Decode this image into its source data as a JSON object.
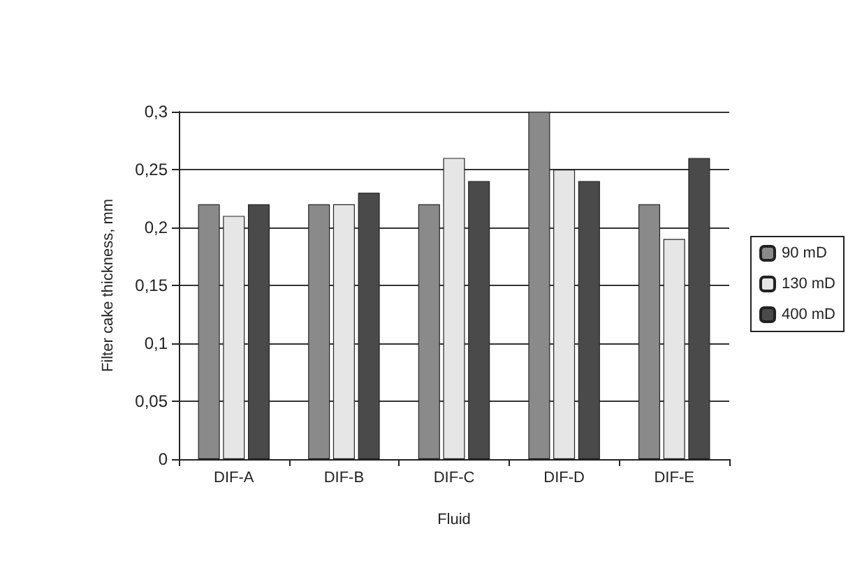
{
  "chart_data": {
    "type": "bar",
    "xlabel": "Fluid",
    "ylabel": "Filter cake thickness, mm",
    "categories": [
      "DIF-A",
      "DIF-B",
      "DIF-C",
      "DIF-D",
      "DIF-E"
    ],
    "series": [
      {
        "name": "90 mD",
        "color": "#8a8a8a",
        "values": [
          0.22,
          0.22,
          0.22,
          0.3,
          0.22
        ]
      },
      {
        "name": "130 mD",
        "color": "#e6e6e6",
        "values": [
          0.21,
          0.22,
          0.26,
          0.25,
          0.19
        ]
      },
      {
        "name": "400 mD",
        "color": "#4a4a4a",
        "values": [
          0.22,
          0.23,
          0.24,
          0.24,
          0.26
        ]
      }
    ],
    "ylim": [
      0,
      0.3
    ],
    "yticks": [
      {
        "value": 0,
        "label": "0"
      },
      {
        "value": 0.05,
        "label": "0,05"
      },
      {
        "value": 0.1,
        "label": "0,1"
      },
      {
        "value": 0.15,
        "label": "0,15"
      },
      {
        "value": 0.2,
        "label": "0,2"
      },
      {
        "value": 0.25,
        "label": "0,25"
      },
      {
        "value": 0.3,
        "label": "0,3"
      }
    ],
    "grid": "y",
    "legend": "right"
  }
}
